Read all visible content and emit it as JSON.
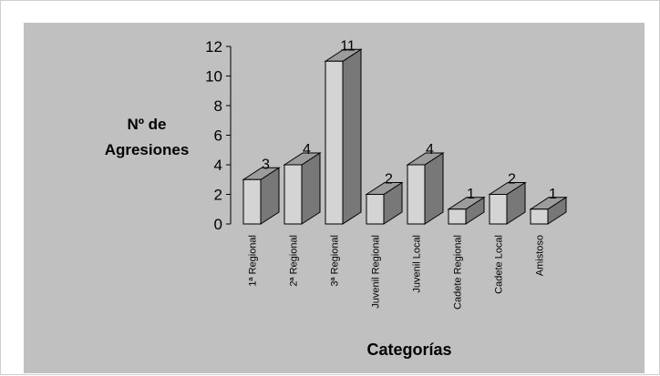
{
  "chart_data": {
    "type": "bar",
    "title": "",
    "ylabel_lines": [
      "Nº de",
      "Agresiones"
    ],
    "xlabel": "Categorías",
    "categories": [
      "1ª Regional",
      "2ª Regional",
      "3ª Regional",
      "Juvenil Regional",
      "Juvenil Local",
      "Cadete Regional",
      "Cadete Local",
      "Amistoso"
    ],
    "values": [
      3,
      4,
      11,
      2,
      4,
      1,
      2,
      1
    ],
    "data_labels": [
      "3",
      "4",
      "11",
      "2",
      "4",
      "1",
      "2",
      "1"
    ],
    "ylim": [
      0,
      12
    ],
    "yticks": [
      "0",
      "2",
      "4",
      "6",
      "8",
      "10",
      "12"
    ],
    "style": "3d-bar",
    "grid": false,
    "legend": "none",
    "colors": {
      "plot_background": "#c0c0c0",
      "bar_front": "#d4d4d4",
      "bar_top": "#9c9c9c",
      "bar_side": "#787878",
      "edge": "#000000"
    }
  }
}
